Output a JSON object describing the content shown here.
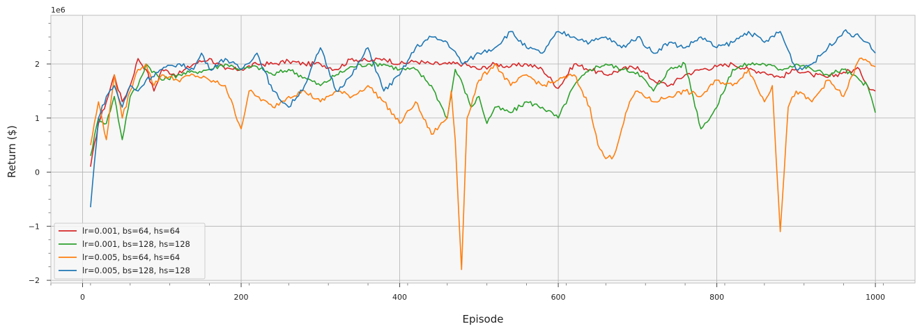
{
  "chart_data": {
    "type": "line",
    "xlabel": "Episode",
    "ylabel": "Return ($)",
    "y_multiplier": "1e6",
    "xlim": [
      -40,
      1050
    ],
    "ylim": [
      -2.05,
      2.9
    ],
    "x_ticks": [
      0,
      200,
      400,
      600,
      800,
      1000
    ],
    "y_ticks": [
      -2,
      -1,
      0,
      1,
      2
    ],
    "y_tick_labels": [
      "−2",
      "−1",
      "0",
      "1",
      "2"
    ],
    "grid": true,
    "legend_position": "lower-left",
    "series": [
      {
        "name": "lr=0.001, bs=64, hs=64",
        "color": "#d62728",
        "points": [
          [
            10,
            0.1
          ],
          [
            20,
            0.9
          ],
          [
            30,
            1.3
          ],
          [
            40,
            1.8
          ],
          [
            50,
            1.3
          ],
          [
            60,
            1.6
          ],
          [
            70,
            2.1
          ],
          [
            80,
            1.9
          ],
          [
            90,
            1.5
          ],
          [
            100,
            1.9
          ],
          [
            120,
            1.8
          ],
          [
            140,
            2.0
          ],
          [
            160,
            2.1
          ],
          [
            180,
            1.9
          ],
          [
            200,
            1.9
          ],
          [
            220,
            2.0
          ],
          [
            240,
            2.0
          ],
          [
            260,
            2.05
          ],
          [
            280,
            2.0
          ],
          [
            300,
            2.0
          ],
          [
            320,
            1.9
          ],
          [
            340,
            2.1
          ],
          [
            360,
            2.05
          ],
          [
            380,
            2.1
          ],
          [
            400,
            2.0
          ],
          [
            420,
            2.05
          ],
          [
            440,
            2.0
          ],
          [
            460,
            2.0
          ],
          [
            480,
            2.0
          ],
          [
            500,
            1.9
          ],
          [
            520,
            2.0
          ],
          [
            540,
            1.95
          ],
          [
            560,
            2.0
          ],
          [
            580,
            1.9
          ],
          [
            600,
            1.55
          ],
          [
            620,
            2.0
          ],
          [
            640,
            1.9
          ],
          [
            660,
            1.8
          ],
          [
            680,
            1.9
          ],
          [
            700,
            1.95
          ],
          [
            720,
            1.7
          ],
          [
            740,
            1.6
          ],
          [
            760,
            1.8
          ],
          [
            780,
            1.9
          ],
          [
            800,
            1.95
          ],
          [
            820,
            2.0
          ],
          [
            840,
            1.9
          ],
          [
            860,
            1.85
          ],
          [
            880,
            1.75
          ],
          [
            900,
            1.9
          ],
          [
            920,
            1.8
          ],
          [
            940,
            1.75
          ],
          [
            960,
            1.85
          ],
          [
            980,
            1.9
          ],
          [
            990,
            1.6
          ],
          [
            1000,
            1.5
          ]
        ]
      },
      {
        "name": "lr=0.001, bs=128, hs=128",
        "color": "#2ca02c",
        "points": [
          [
            10,
            0.3
          ],
          [
            20,
            1.0
          ],
          [
            30,
            0.9
          ],
          [
            40,
            1.4
          ],
          [
            50,
            0.6
          ],
          [
            60,
            1.4
          ],
          [
            70,
            1.6
          ],
          [
            80,
            2.0
          ],
          [
            100,
            1.7
          ],
          [
            120,
            1.8
          ],
          [
            140,
            1.85
          ],
          [
            160,
            1.9
          ],
          [
            180,
            2.0
          ],
          [
            200,
            1.9
          ],
          [
            220,
            1.95
          ],
          [
            240,
            1.8
          ],
          [
            260,
            1.9
          ],
          [
            280,
            1.75
          ],
          [
            300,
            1.6
          ],
          [
            320,
            1.8
          ],
          [
            340,
            1.95
          ],
          [
            360,
            2.0
          ],
          [
            380,
            2.0
          ],
          [
            400,
            1.9
          ],
          [
            420,
            1.9
          ],
          [
            440,
            1.6
          ],
          [
            450,
            1.3
          ],
          [
            460,
            1.0
          ],
          [
            470,
            1.9
          ],
          [
            480,
            1.6
          ],
          [
            490,
            1.2
          ],
          [
            500,
            1.4
          ],
          [
            510,
            0.9
          ],
          [
            520,
            1.2
          ],
          [
            540,
            1.1
          ],
          [
            560,
            1.3
          ],
          [
            580,
            1.2
          ],
          [
            600,
            1.0
          ],
          [
            620,
            1.6
          ],
          [
            640,
            1.9
          ],
          [
            660,
            2.0
          ],
          [
            680,
            1.9
          ],
          [
            700,
            1.85
          ],
          [
            720,
            1.5
          ],
          [
            740,
            1.9
          ],
          [
            760,
            2.0
          ],
          [
            780,
            0.8
          ],
          [
            800,
            1.2
          ],
          [
            820,
            1.9
          ],
          [
            840,
            2.0
          ],
          [
            860,
            2.0
          ],
          [
            880,
            1.9
          ],
          [
            900,
            2.0
          ],
          [
            920,
            1.9
          ],
          [
            940,
            1.8
          ],
          [
            960,
            1.9
          ],
          [
            980,
            1.7
          ],
          [
            990,
            1.6
          ],
          [
            1000,
            1.1
          ]
        ]
      },
      {
        "name": "lr=0.005, bs=64, hs=64",
        "color": "#ff7f0e",
        "points": [
          [
            10,
            0.5
          ],
          [
            20,
            1.3
          ],
          [
            30,
            0.6
          ],
          [
            40,
            1.8
          ],
          [
            50,
            1.0
          ],
          [
            60,
            1.5
          ],
          [
            70,
            1.9
          ],
          [
            80,
            2.0
          ],
          [
            90,
            1.6
          ],
          [
            100,
            1.8
          ],
          [
            120,
            1.7
          ],
          [
            140,
            1.8
          ],
          [
            160,
            1.7
          ],
          [
            180,
            1.6
          ],
          [
            200,
            0.8
          ],
          [
            210,
            1.5
          ],
          [
            220,
            1.4
          ],
          [
            240,
            1.2
          ],
          [
            260,
            1.4
          ],
          [
            280,
            1.5
          ],
          [
            300,
            1.3
          ],
          [
            320,
            1.5
          ],
          [
            340,
            1.4
          ],
          [
            360,
            1.6
          ],
          [
            380,
            1.3
          ],
          [
            400,
            0.9
          ],
          [
            420,
            1.3
          ],
          [
            440,
            0.7
          ],
          [
            460,
            1.0
          ],
          [
            465,
            1.5
          ],
          [
            470,
            0.6
          ],
          [
            478,
            -1.8
          ],
          [
            485,
            1.0
          ],
          [
            500,
            1.7
          ],
          [
            520,
            2.0
          ],
          [
            540,
            1.6
          ],
          [
            560,
            1.8
          ],
          [
            580,
            1.6
          ],
          [
            600,
            1.7
          ],
          [
            620,
            1.8
          ],
          [
            640,
            1.2
          ],
          [
            650,
            0.5
          ],
          [
            660,
            0.25
          ],
          [
            670,
            0.3
          ],
          [
            680,
            0.8
          ],
          [
            690,
            1.3
          ],
          [
            700,
            1.5
          ],
          [
            720,
            1.3
          ],
          [
            740,
            1.4
          ],
          [
            760,
            1.5
          ],
          [
            780,
            1.4
          ],
          [
            800,
            1.7
          ],
          [
            820,
            1.6
          ],
          [
            840,
            1.9
          ],
          [
            860,
            1.3
          ],
          [
            870,
            1.6
          ],
          [
            880,
            -1.1
          ],
          [
            890,
            1.2
          ],
          [
            900,
            1.5
          ],
          [
            920,
            1.3
          ],
          [
            940,
            1.7
          ],
          [
            960,
            1.4
          ],
          [
            980,
            2.1
          ],
          [
            990,
            2.05
          ],
          [
            1000,
            1.95
          ]
        ]
      },
      {
        "name": "lr=0.005, bs=128, hs=128",
        "color": "#1f77b4",
        "points": [
          [
            10,
            -0.65
          ],
          [
            20,
            1.0
          ],
          [
            30,
            1.4
          ],
          [
            40,
            1.6
          ],
          [
            50,
            1.2
          ],
          [
            60,
            1.6
          ],
          [
            70,
            1.5
          ],
          [
            80,
            1.7
          ],
          [
            100,
            1.9
          ],
          [
            120,
            2.0
          ],
          [
            140,
            1.9
          ],
          [
            150,
            2.2
          ],
          [
            160,
            1.9
          ],
          [
            180,
            2.1
          ],
          [
            200,
            1.9
          ],
          [
            220,
            2.2
          ],
          [
            240,
            1.5
          ],
          [
            260,
            1.2
          ],
          [
            280,
            1.6
          ],
          [
            300,
            2.3
          ],
          [
            320,
            1.5
          ],
          [
            340,
            1.8
          ],
          [
            360,
            2.3
          ],
          [
            380,
            1.5
          ],
          [
            400,
            1.8
          ],
          [
            420,
            2.3
          ],
          [
            440,
            2.5
          ],
          [
            460,
            2.4
          ],
          [
            480,
            2.0
          ],
          [
            500,
            2.2
          ],
          [
            520,
            2.3
          ],
          [
            540,
            2.6
          ],
          [
            560,
            2.3
          ],
          [
            580,
            2.2
          ],
          [
            600,
            2.6
          ],
          [
            620,
            2.5
          ],
          [
            640,
            2.4
          ],
          [
            660,
            2.5
          ],
          [
            680,
            2.3
          ],
          [
            700,
            2.5
          ],
          [
            720,
            2.2
          ],
          [
            740,
            2.4
          ],
          [
            760,
            2.3
          ],
          [
            780,
            2.5
          ],
          [
            800,
            2.3
          ],
          [
            820,
            2.4
          ],
          [
            840,
            2.6
          ],
          [
            860,
            2.4
          ],
          [
            880,
            2.6
          ],
          [
            900,
            1.9
          ],
          [
            920,
            2.0
          ],
          [
            940,
            2.3
          ],
          [
            960,
            2.6
          ],
          [
            980,
            2.5
          ],
          [
            990,
            2.4
          ],
          [
            1000,
            2.2
          ]
        ]
      }
    ]
  }
}
